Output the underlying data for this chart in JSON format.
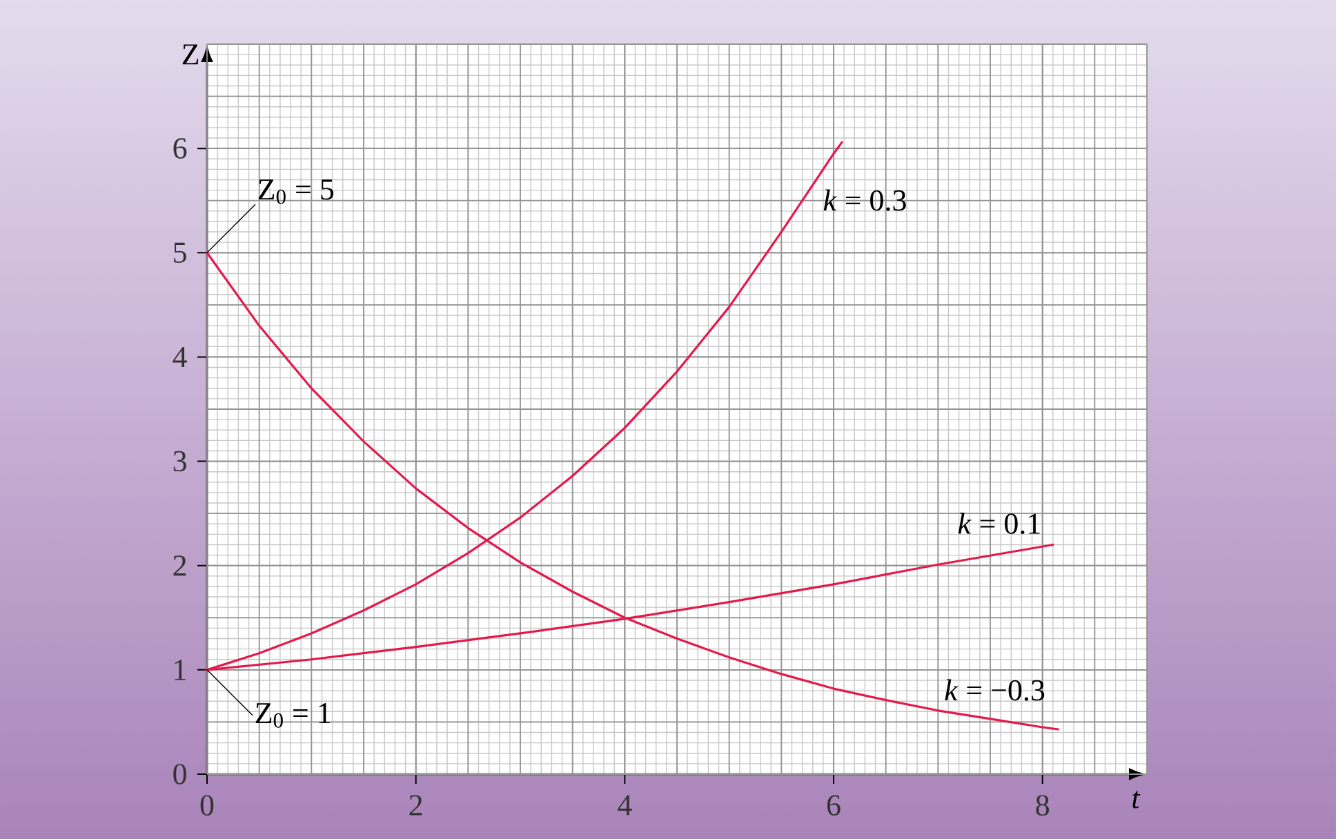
{
  "chart_data": {
    "type": "line",
    "xlabel": "t",
    "ylabel": "Z",
    "xlim": [
      0,
      9
    ],
    "ylim": [
      0,
      7
    ],
    "xticks": [
      0,
      2,
      4,
      6,
      8
    ],
    "yticks": [
      0,
      1,
      2,
      3,
      4,
      5,
      6
    ],
    "grid": true,
    "marker": "none",
    "line_style": "solid",
    "annotations": [
      {
        "text": "Z$_{0}$ = 5",
        "x": 0,
        "y": 5
      },
      {
        "text": "Z$_{0}$ = 1",
        "x": 0,
        "y": 1
      }
    ],
    "series": [
      {
        "name": "*k* = 0.3",
        "color": "#e5194b",
        "x": [
          0,
          0.5,
          1,
          1.5,
          2,
          2.5,
          3,
          3.5,
          4,
          4.5,
          5,
          5.5,
          6,
          6.08
        ],
        "values": [
          1,
          1.16,
          1.35,
          1.57,
          1.82,
          2.12,
          2.46,
          2.86,
          3.32,
          3.86,
          4.48,
          5.2,
          5.95,
          6.06
        ]
      },
      {
        "name": "*k* = 0.1",
        "color": "#e5194b",
        "x": [
          0,
          1,
          2,
          3,
          4,
          5,
          6,
          7,
          8.1
        ],
        "values": [
          1,
          1.1,
          1.22,
          1.35,
          1.49,
          1.65,
          1.82,
          2.01,
          2.2
        ]
      },
      {
        "name": "*k* = −0.3",
        "color": "#e5194b",
        "x": [
          0,
          0.5,
          1,
          1.5,
          2,
          2.5,
          3,
          3.5,
          4,
          4.5,
          5,
          5.5,
          6,
          6.5,
          7,
          7.5,
          8,
          8.15
        ],
        "values": [
          5,
          4.3,
          3.7,
          3.19,
          2.74,
          2.36,
          2.03,
          1.75,
          1.5,
          1.3,
          1.12,
          0.96,
          0.82,
          0.71,
          0.61,
          0.53,
          0.45,
          0.43
        ]
      }
    ]
  }
}
